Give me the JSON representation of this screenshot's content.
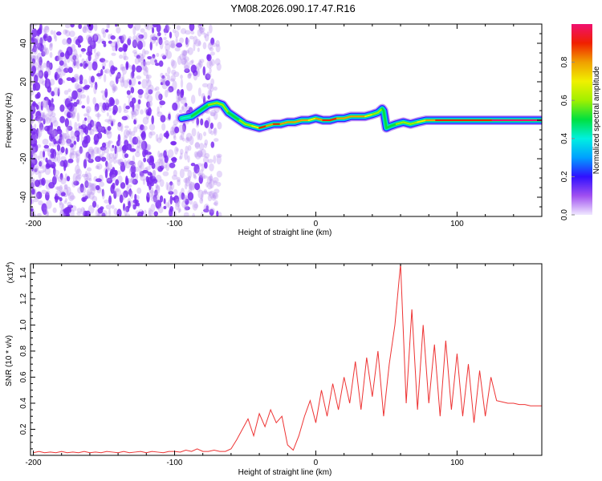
{
  "title": "YM08.2026.090.17.47.R16",
  "chart_data": [
    {
      "type": "heatmap",
      "title": "YM08.2026.090.17.47.R16",
      "xlabel": "Height of straight line (km)",
      "ylabel": "Frequency (Hz)",
      "xlim": [
        -202,
        160
      ],
      "ylim": [
        -50,
        50
      ],
      "xticks": [
        "-200",
        "-100",
        "0",
        "100"
      ],
      "xtick_values": [
        -200,
        -100,
        0,
        100
      ],
      "yticks": [
        "-40",
        "-20",
        "0",
        "20",
        "40"
      ],
      "ytick_values": [
        -40,
        -20,
        0,
        20,
        40
      ],
      "noise_region_km": [
        -202,
        -68
      ],
      "ridge": {
        "height_km": [
          -95,
          -88,
          -82,
          -76,
          -70,
          -66,
          -62,
          -58,
          -54,
          -50,
          -45,
          -40,
          -35,
          -30,
          -25,
          -20,
          -15,
          -10,
          -5,
          0,
          5,
          10,
          15,
          20,
          25,
          30,
          35,
          40,
          44,
          47,
          48,
          50,
          53,
          57,
          62,
          67,
          72,
          78,
          85,
          95,
          105,
          115,
          125,
          140,
          160
        ],
        "frequency_hz": [
          1,
          2,
          5,
          8,
          9,
          8,
          4,
          2,
          0,
          -2,
          -3,
          -4,
          -3,
          -2,
          -2,
          -1,
          -1,
          0,
          0,
          1,
          0,
          0,
          1,
          1,
          2,
          2,
          2,
          3,
          4,
          6,
          5,
          -4,
          -3,
          -2,
          -1,
          -2,
          -1,
          0,
          0,
          0,
          0,
          0,
          0,
          0,
          0
        ],
        "amplitude": [
          0.4,
          0.45,
          0.5,
          0.55,
          0.6,
          0.55,
          0.5,
          0.5,
          0.55,
          0.6,
          0.7,
          0.85,
          0.8,
          0.85,
          0.8,
          0.8,
          0.75,
          0.75,
          0.7,
          0.8,
          0.85,
          0.85,
          0.8,
          0.8,
          0.75,
          0.75,
          0.7,
          0.6,
          0.55,
          0.5,
          0.45,
          0.45,
          0.5,
          0.55,
          0.6,
          0.6,
          0.65,
          0.75,
          0.85,
          0.9,
          0.9,
          0.9,
          0.95,
          0.95,
          0.95
        ]
      },
      "colorbar": {
        "label": "Normalized spectral amplitude",
        "range": [
          0,
          1
        ],
        "ticks": [
          "0.0",
          "0.2",
          "0.4",
          "0.6",
          "0.8"
        ],
        "tick_values": [
          0,
          0.2,
          0.4,
          0.6,
          0.8
        ],
        "colors": [
          "#f0e8ff",
          "#a050f0",
          "#3010ff",
          "#00a0ff",
          "#00f0e0",
          "#00e040",
          "#a0f000",
          "#f0f000",
          "#f0a000",
          "#f02000",
          "#f01070"
        ]
      }
    },
    {
      "type": "line",
      "xlabel": "Height of straight line (km)",
      "ylabel": "SNR (10 * v/v)",
      "yscale_label": "(x10",
      "yscale_exp": "4",
      "xlim": [
        -202,
        160
      ],
      "ylim": [
        0,
        1.47
      ],
      "xticks": [
        "-200",
        "-100",
        "0",
        "100"
      ],
      "xtick_values": [
        -200,
        -100,
        0,
        100
      ],
      "yticks": [
        "0.2",
        "0.4",
        "0.6",
        "0.8",
        "1.0",
        "1.2",
        "1.4"
      ],
      "ytick_values": [
        0.2,
        0.4,
        0.6,
        0.8,
        1.0,
        1.2,
        1.4
      ],
      "color": "#ee3333",
      "x_start": -200,
      "x_step": 4,
      "values": [
        0.02,
        0.03,
        0.02,
        0.025,
        0.02,
        0.03,
        0.02,
        0.025,
        0.02,
        0.03,
        0.02,
        0.025,
        0.02,
        0.03,
        0.025,
        0.02,
        0.03,
        0.02,
        0.025,
        0.03,
        0.02,
        0.03,
        0.025,
        0.02,
        0.03,
        0.03,
        0.025,
        0.04,
        0.03,
        0.05,
        0.03,
        0.03,
        0.04,
        0.03,
        0.03,
        0.05,
        0.12,
        0.2,
        0.28,
        0.15,
        0.32,
        0.22,
        0.35,
        0.25,
        0.3,
        0.08,
        0.04,
        0.15,
        0.3,
        0.42,
        0.25,
        0.5,
        0.3,
        0.55,
        0.35,
        0.6,
        0.4,
        0.72,
        0.35,
        0.75,
        0.45,
        0.8,
        0.3,
        0.7,
        1.0,
        1.47,
        0.4,
        1.12,
        0.35,
        1.0,
        0.4,
        0.85,
        0.3,
        0.88,
        0.35,
        0.78,
        0.3,
        0.7,
        0.25,
        0.65,
        0.3,
        0.6,
        0.42,
        0.41,
        0.4,
        0.4,
        0.39,
        0.39,
        0.38,
        0.38,
        0.38
      ]
    }
  ]
}
